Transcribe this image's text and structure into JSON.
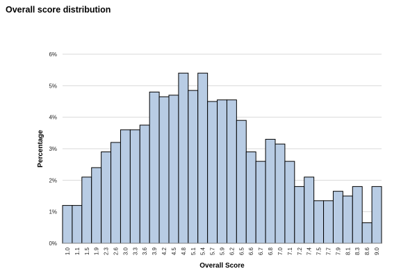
{
  "chart_data": {
    "type": "bar",
    "title": "Overall score distribution",
    "xlabel": "Overall Score",
    "ylabel": "Percentage",
    "ylim": [
      0,
      6
    ],
    "yticks": [
      "0%",
      "1%",
      "2%",
      "3%",
      "4%",
      "5%",
      "6%"
    ],
    "grid": true,
    "bar_color": "#b8cce4",
    "bar_edge_color": "#000000",
    "grid_color": "#d9d9d9",
    "categories": [
      "1.0",
      "1.1",
      "1.5",
      "1.9",
      "2.3",
      "2.6",
      "3.0",
      "3.3",
      "3.6",
      "3.9",
      "4.2",
      "4.5",
      "4.8",
      "5.1",
      "5.4",
      "5.7",
      "5.9",
      "6.2",
      "6.5",
      "6.6",
      "6.7",
      "6.8",
      "7.0",
      "7.1",
      "7.2",
      "7.4",
      "7.5",
      "7.7",
      "7.9",
      "8.1",
      "8.3",
      "8.6",
      "9.0"
    ],
    "values": [
      1.2,
      1.2,
      2.1,
      2.4,
      2.9,
      3.2,
      3.6,
      3.6,
      3.75,
      4.8,
      4.65,
      4.7,
      5.4,
      4.85,
      5.4,
      4.5,
      4.55,
      4.55,
      3.9,
      2.9,
      2.6,
      3.3,
      3.15,
      2.6,
      1.8,
      2.1,
      1.35,
      1.35,
      1.65,
      1.5,
      1.8,
      0.65,
      1.8
    ]
  }
}
